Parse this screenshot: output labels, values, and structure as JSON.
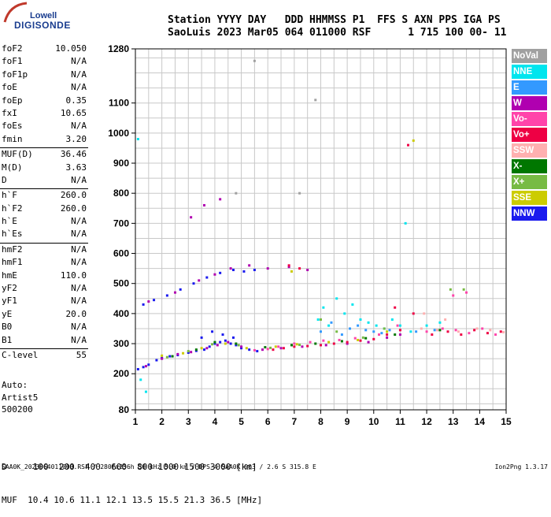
{
  "logo": {
    "line1": "Lowell",
    "line2": "DIGISONDE"
  },
  "header": {
    "line1": "Station YYYY DAY   DDD HHMMSS P1  FFS S AXN PPS IGA PS",
    "line2": "SaoLuis 2023 Mar05 064 011000 RSF      1 715 100 00- 11"
  },
  "params": {
    "group1": [
      {
        "name": "foF2",
        "value": "10.050"
      },
      {
        "name": "foF1",
        "value": "N/A"
      },
      {
        "name": "foF1p",
        "value": "N/A"
      },
      {
        "name": "foE",
        "value": "N/A"
      },
      {
        "name": "foEp",
        "value": "0.35"
      },
      {
        "name": "fxI",
        "value": "10.65"
      },
      {
        "name": "foEs",
        "value": "N/A"
      },
      {
        "name": "fmin",
        "value": "3.20"
      }
    ],
    "group2": [
      {
        "name": "MUF(D)",
        "value": "36.46"
      },
      {
        "name": "M(D)",
        "value": "3.63"
      },
      {
        "name": "D",
        "value": "N/A"
      }
    ],
    "group3": [
      {
        "name": "h`F",
        "value": "260.0"
      },
      {
        "name": "h`F2",
        "value": "260.0"
      },
      {
        "name": "h`E",
        "value": "N/A"
      },
      {
        "name": "h`Es",
        "value": "N/A"
      }
    ],
    "group4": [
      {
        "name": "hmF2",
        "value": "N/A"
      },
      {
        "name": "hmF1",
        "value": "N/A"
      },
      {
        "name": "hmE",
        "value": "110.0"
      },
      {
        "name": "yF2",
        "value": "N/A"
      },
      {
        "name": "yF1",
        "value": "N/A"
      },
      {
        "name": "yE",
        "value": "20.0"
      },
      {
        "name": "B0",
        "value": "N/A"
      },
      {
        "name": "B1",
        "value": "N/A"
      }
    ],
    "group5": [
      {
        "name": "C-level",
        "value": "55"
      }
    ]
  },
  "auto": {
    "line1": "Auto:",
    "line2": "Artist5",
    "line3": "500200"
  },
  "dmuf": {
    "d_line": "D     100  200  400  600  800 1000 1500 3000 [km]",
    "muf_line": "MUF  10.4 10.6 11.1 12.1 13.5 15.5 21.3 36.5 [MHz]"
  },
  "footer": {
    "left": "SAA0K_2023064011000.RSF / 280fx256h 50 kHz 5.0 km / DPS-4 SAA0K 903 / 2.6 S 315.8 E",
    "right": "Ion2Png 1.3.17"
  },
  "legend": [
    {
      "label": "NoVal",
      "color": "#a0a0a0"
    },
    {
      "label": "NNE",
      "color": "#00e5ee"
    },
    {
      "label": "E",
      "color": "#3399ff"
    },
    {
      "label": "W",
      "color": "#b000b0"
    },
    {
      "label": "Vo-",
      "color": "#ff44aa"
    },
    {
      "label": "Vo+",
      "color": "#ee0044"
    },
    {
      "label": "SSW",
      "color": "#ffb0b0"
    },
    {
      "label": "X-",
      "color": "#007700"
    },
    {
      "label": "X+",
      "color": "#77bb44"
    },
    {
      "label": "SSE",
      "color": "#cccc00"
    },
    {
      "label": "NNW",
      "color": "#1a1aee"
    }
  ],
  "chart_data": {
    "type": "scatter",
    "title": "",
    "xlabel": "",
    "ylabel": "",
    "xlim": [
      1,
      15
    ],
    "ylim": [
      80,
      1280
    ],
    "x_ticks": [
      1,
      2,
      3,
      4,
      5,
      6,
      7,
      8,
      9,
      10,
      11,
      12,
      13,
      14,
      15
    ],
    "y_tick_labels": [
      {
        "value": 80,
        "label": "80"
      },
      {
        "value": 200,
        "label": "200"
      },
      {
        "value": 300,
        "label": "300"
      },
      {
        "value": 400,
        "label": "400"
      },
      {
        "value": 500,
        "label": "500"
      },
      {
        "value": 600,
        "label": "600"
      },
      {
        "value": 700,
        "label": "700"
      },
      {
        "value": 800,
        "label": "800"
      },
      {
        "value": 900,
        "label": "900"
      },
      {
        "value": 1000,
        "label": "1000"
      },
      {
        "value": 1100,
        "label": "1100"
      },
      {
        "value": 1280,
        "label": "1280"
      }
    ],
    "grid": true,
    "legend_position": "right",
    "series": [
      {
        "color": "#1a1aee",
        "points": [
          [
            1.1,
            215
          ],
          [
            1.3,
            222
          ],
          [
            1.5,
            230
          ],
          [
            1.8,
            245
          ],
          [
            2.0,
            252
          ],
          [
            2.3,
            258
          ],
          [
            2.6,
            262
          ],
          [
            3.0,
            270
          ],
          [
            3.3,
            276
          ],
          [
            3.6,
            280
          ],
          [
            3.8,
            290
          ],
          [
            4.0,
            300
          ],
          [
            4.2,
            305
          ],
          [
            4.4,
            310
          ],
          [
            4.6,
            300
          ],
          [
            4.8,
            295
          ],
          [
            5.0,
            285
          ],
          [
            5.3,
            280
          ],
          [
            5.6,
            275
          ],
          [
            3.5,
            320
          ],
          [
            3.9,
            340
          ],
          [
            4.3,
            330
          ],
          [
            4.7,
            320
          ],
          [
            1.3,
            430
          ],
          [
            1.7,
            445
          ],
          [
            2.2,
            460
          ],
          [
            2.7,
            480
          ],
          [
            3.2,
            500
          ],
          [
            3.7,
            520
          ],
          [
            4.2,
            535
          ],
          [
            4.7,
            545
          ],
          [
            5.1,
            540
          ],
          [
            5.5,
            545
          ]
        ]
      },
      {
        "color": "#b000b0",
        "points": [
          [
            1.4,
            225
          ],
          [
            2.0,
            250
          ],
          [
            2.6,
            265
          ],
          [
            3.1,
            272
          ],
          [
            3.7,
            285
          ],
          [
            4.1,
            295
          ],
          [
            4.5,
            305
          ],
          [
            5.0,
            290
          ],
          [
            5.8,
            280
          ],
          [
            6.5,
            285
          ],
          [
            7.3,
            290
          ],
          [
            8.2,
            295
          ],
          [
            9.0,
            300
          ],
          [
            9.8,
            305
          ],
          [
            10.5,
            320
          ],
          [
            11.0,
            330
          ],
          [
            1.5,
            440
          ],
          [
            2.5,
            470
          ],
          [
            3.4,
            510
          ],
          [
            4.0,
            530
          ],
          [
            4.6,
            550
          ],
          [
            5.3,
            560
          ],
          [
            6.0,
            550
          ],
          [
            6.8,
            555
          ],
          [
            7.5,
            545
          ],
          [
            3.1,
            720
          ],
          [
            3.6,
            760
          ],
          [
            4.2,
            780
          ]
        ]
      },
      {
        "color": "#ee0044",
        "points": [
          [
            6.2,
            280
          ],
          [
            6.6,
            285
          ],
          [
            7.0,
            290
          ],
          [
            7.5,
            292
          ],
          [
            8.0,
            295
          ],
          [
            8.5,
            300
          ],
          [
            9.0,
            305
          ],
          [
            9.5,
            310
          ],
          [
            10.0,
            315
          ],
          [
            10.5,
            330
          ],
          [
            11.0,
            345
          ],
          [
            11.5,
            400
          ],
          [
            12.2,
            330
          ],
          [
            12.8,
            340
          ],
          [
            13.3,
            330
          ],
          [
            13.8,
            345
          ],
          [
            14.3,
            335
          ],
          [
            14.8,
            340
          ],
          [
            6.8,
            560
          ],
          [
            7.2,
            550
          ],
          [
            10.8,
            420
          ],
          [
            11.3,
            960
          ]
        ]
      },
      {
        "color": "#ff44aa",
        "points": [
          [
            5.5,
            278
          ],
          [
            6.0,
            282
          ],
          [
            6.4,
            290
          ],
          [
            7.0,
            300
          ],
          [
            7.6,
            305
          ],
          [
            8.1,
            310
          ],
          [
            8.7,
            312
          ],
          [
            9.3,
            318
          ],
          [
            10.2,
            330
          ],
          [
            10.9,
            360
          ],
          [
            12.0,
            340
          ],
          [
            12.6,
            350
          ],
          [
            13.1,
            345
          ],
          [
            13.6,
            335
          ],
          [
            14.1,
            350
          ],
          [
            14.6,
            330
          ],
          [
            13.0,
            460
          ],
          [
            13.5,
            470
          ]
        ]
      },
      {
        "color": "#00e5ee",
        "points": [
          [
            7.9,
            380
          ],
          [
            8.1,
            420
          ],
          [
            8.3,
            360
          ],
          [
            8.6,
            450
          ],
          [
            8.9,
            400
          ],
          [
            9.2,
            430
          ],
          [
            9.5,
            380
          ],
          [
            9.8,
            370
          ],
          [
            10.1,
            360
          ],
          [
            10.4,
            350
          ],
          [
            10.7,
            380
          ],
          [
            11.0,
            360
          ],
          [
            11.4,
            340
          ],
          [
            12.0,
            360
          ],
          [
            12.5,
            370
          ],
          [
            1.2,
            180
          ],
          [
            1.4,
            140
          ],
          [
            1.1,
            980
          ],
          [
            11.2,
            700
          ]
        ]
      },
      {
        "color": "#3399ff",
        "points": [
          [
            8.0,
            340
          ],
          [
            8.4,
            370
          ],
          [
            8.8,
            330
          ],
          [
            9.1,
            350
          ],
          [
            9.4,
            360
          ],
          [
            9.7,
            345
          ],
          [
            10.0,
            340
          ],
          [
            10.3,
            335
          ],
          [
            10.6,
            345
          ],
          [
            11.6,
            340
          ],
          [
            12.3,
            345
          ]
        ]
      },
      {
        "color": "#cccc00",
        "points": [
          [
            2.0,
            260
          ],
          [
            2.8,
            268
          ],
          [
            3.5,
            285
          ],
          [
            4.4,
            300
          ],
          [
            5.2,
            285
          ],
          [
            6.3,
            290
          ],
          [
            7.1,
            298
          ],
          [
            8.3,
            305
          ],
          [
            9.4,
            312
          ],
          [
            10.5,
            340
          ],
          [
            11.5,
            975
          ],
          [
            6.9,
            540
          ]
        ]
      },
      {
        "color": "#007700",
        "points": [
          [
            2.4,
            258
          ],
          [
            3.3,
            280
          ],
          [
            4.0,
            305
          ],
          [
            4.8,
            300
          ],
          [
            5.9,
            288
          ],
          [
            6.9,
            295
          ],
          [
            7.8,
            300
          ],
          [
            8.8,
            308
          ],
          [
            9.7,
            318
          ],
          [
            10.8,
            330
          ],
          [
            12.5,
            345
          ]
        ]
      },
      {
        "color": "#77bb44",
        "points": [
          [
            2.2,
            255
          ],
          [
            3.0,
            275
          ],
          [
            3.9,
            298
          ],
          [
            4.9,
            295
          ],
          [
            6.1,
            286
          ],
          [
            7.2,
            296
          ],
          [
            8.0,
            380
          ],
          [
            8.6,
            340
          ],
          [
            9.6,
            320
          ],
          [
            10.4,
            350
          ],
          [
            12.9,
            480
          ],
          [
            13.4,
            480
          ]
        ]
      },
      {
        "color": "#ffb0b0",
        "points": [
          [
            11.8,
            350
          ],
          [
            12.4,
            345
          ],
          [
            13.2,
            340
          ],
          [
            13.9,
            350
          ],
          [
            14.4,
            345
          ],
          [
            14.9,
            338
          ],
          [
            11.9,
            400
          ],
          [
            12.7,
            380
          ]
        ]
      },
      {
        "color": "#a0a0a0",
        "points": [
          [
            5.5,
            1240
          ],
          [
            7.8,
            1110
          ],
          [
            7.2,
            800
          ],
          [
            4.8,
            800
          ]
        ]
      }
    ]
  }
}
